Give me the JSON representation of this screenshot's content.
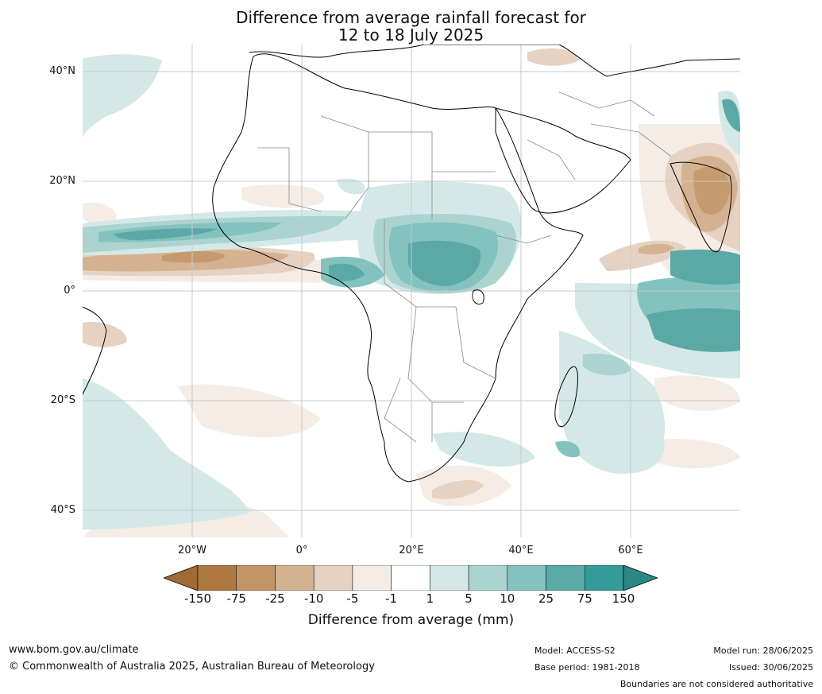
{
  "title": {
    "line1": "Difference from average rainfall forecast for",
    "line2": "12 to 18 July 2025"
  },
  "map": {
    "region": "Africa",
    "lat_labels": [
      "40°N",
      "20°N",
      "0°",
      "20°S",
      "40°S"
    ],
    "lon_labels": [
      "20°W",
      "0°",
      "20°E",
      "40°E",
      "60°E"
    ],
    "grid": true,
    "colors": {
      "ocean_wet_light": "#d4e9e7",
      "wet_5": "#abd4d1",
      "wet_10": "#84c2bf",
      "wet_25": "#5aa9a6",
      "wet_75": "#349b98",
      "dry_light": "#f5ece6",
      "dry_5": "#e6d2c2",
      "dry_10": "#d4b291",
      "dry_25": "#c59a6e",
      "dry_75": "#a97540",
      "land": "#ffffff",
      "coast": "#000000",
      "border": "#888888"
    }
  },
  "colorbar": {
    "ticks": [
      "-150",
      "-75",
      "-25",
      "-10",
      "-5",
      "-1",
      "1",
      "5",
      "10",
      "25",
      "75",
      "150"
    ],
    "colors": [
      "#a06a34",
      "#ad7841",
      "#c29467",
      "#d3b291",
      "#e6d2c2",
      "#f5ece6",
      "#ffffff",
      "#d4e9e7",
      "#abd4d1",
      "#84c2bf",
      "#5aa9a6",
      "#349b98",
      "#2c8784"
    ],
    "label": "Difference from average (mm)"
  },
  "footer": {
    "url": "www.bom.gov.au/climate",
    "copyright": "© Commonwealth of Australia 2025, Australian Bureau of Meteorology",
    "model": "Model: ACCESS-S2",
    "base_period": "Base period: 1981-2018",
    "model_run": "Model run: 28/06/2025",
    "issued": "Issued: 30/06/2025",
    "disclaimer": "Boundaries are not considered authoritative"
  }
}
